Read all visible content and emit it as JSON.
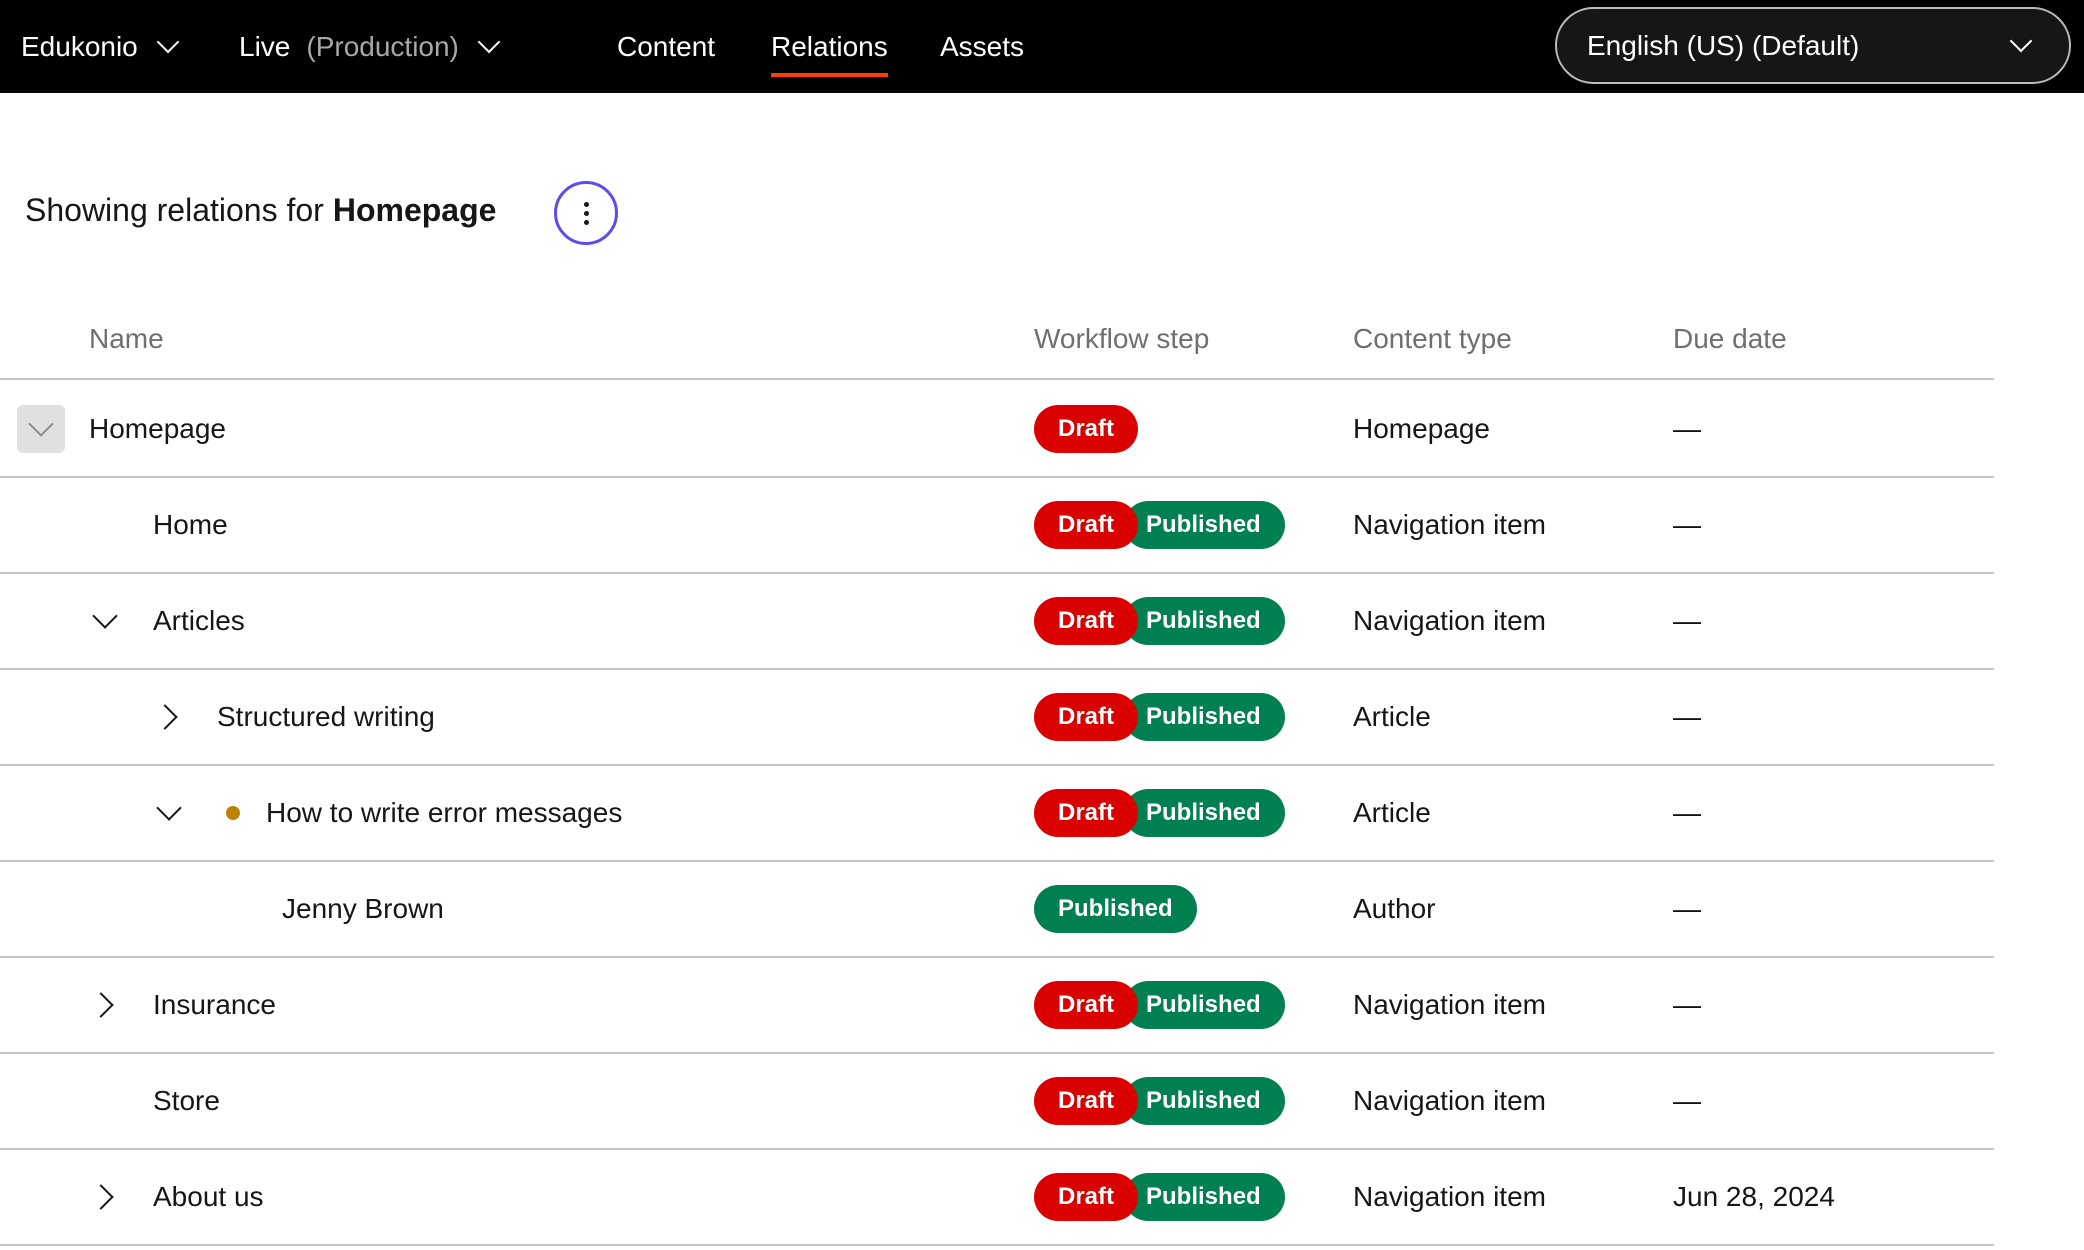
{
  "topbar": {
    "project": "Edukonio",
    "environment": "Live",
    "environment_note": "(Production)",
    "tabs": [
      {
        "label": "Content"
      },
      {
        "label": "Relations",
        "active": true
      },
      {
        "label": "Assets"
      }
    ],
    "language": "English (US) (Default)"
  },
  "heading": {
    "prefix": "Showing relations for",
    "item": "Homepage"
  },
  "table": {
    "columns": [
      "Name",
      "Workflow step",
      "Content type",
      "Due date"
    ],
    "rows": [
      {
        "name": "Homepage",
        "level": 0,
        "toggle": "expanded-box",
        "steps": [
          "Draft"
        ],
        "type": "Homepage",
        "due": "—"
      },
      {
        "name": "Home",
        "level": 1,
        "toggle": "none",
        "steps": [
          "Draft",
          "Published"
        ],
        "type": "Navigation item",
        "due": "—"
      },
      {
        "name": "Articles",
        "level": 1,
        "toggle": "expanded",
        "steps": [
          "Draft",
          "Published"
        ],
        "type": "Navigation item",
        "due": "—"
      },
      {
        "name": "Structured writing",
        "level": 2,
        "toggle": "collapsed",
        "steps": [
          "Draft",
          "Published"
        ],
        "type": "Article",
        "due": "—"
      },
      {
        "name": "How to write error messages",
        "level": 2,
        "toggle": "expanded",
        "dot": true,
        "steps": [
          "Draft",
          "Published"
        ],
        "type": "Article",
        "due": "—"
      },
      {
        "name": "Jenny Brown",
        "level": 3,
        "toggle": "none",
        "steps": [
          "Published"
        ],
        "type": "Author",
        "due": "—"
      },
      {
        "name": "Insurance",
        "level": 1,
        "toggle": "collapsed",
        "steps": [
          "Draft",
          "Published"
        ],
        "type": "Navigation item",
        "due": "—"
      },
      {
        "name": "Store",
        "level": 1,
        "toggle": "none",
        "steps": [
          "Draft",
          "Published"
        ],
        "type": "Navigation item",
        "due": "—"
      },
      {
        "name": "About us",
        "level": 1,
        "toggle": "collapsed",
        "steps": [
          "Draft",
          "Published"
        ],
        "type": "Navigation item",
        "due": "Jun 28, 2024"
      }
    ]
  },
  "colors": {
    "draft": "#da0000",
    "published": "#008050",
    "accent": "#ff3d00",
    "focus": "#5b4cf0",
    "dot": "#c08000"
  }
}
